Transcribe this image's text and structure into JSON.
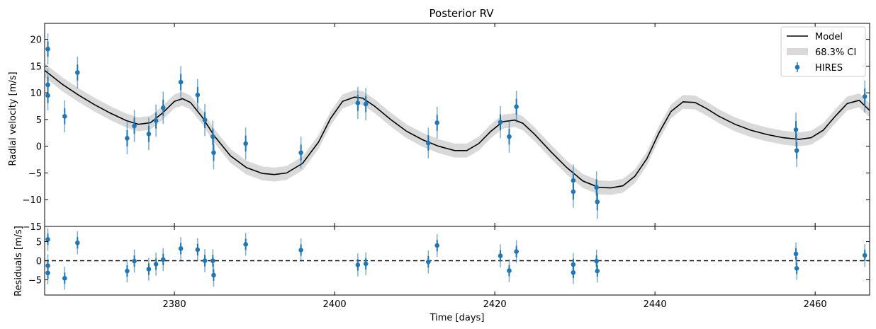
{
  "chart_data": [
    {
      "type": "line",
      "panel": "top",
      "title": "Posterior RV",
      "ylabel": "Radial velocity [m/s]",
      "xlim": [
        2363.8,
        2466.8
      ],
      "ylim": [
        -15,
        23
      ],
      "yticks": [
        -15,
        -10,
        -5,
        0,
        5,
        10,
        15,
        20
      ],
      "ytick_labels": [
        "−15",
        "−10",
        "−5",
        "0",
        "5",
        "10",
        "15",
        "20"
      ],
      "legend": {
        "placement": "top-right",
        "entries": [
          {
            "label": "Model",
            "kind": "line",
            "color": "#000000"
          },
          {
            "label": "68.3% CI",
            "kind": "band",
            "color": "#d9d9d9"
          },
          {
            "label": "HIRES",
            "kind": "errorbar",
            "color": "#1f77b4"
          }
        ]
      },
      "model": {
        "name": "Model",
        "color": "#000000",
        "band_color": "#d9d9d9",
        "band_halfwidth": 1.3,
        "x": [
          2363.8,
          2366,
          2368,
          2370,
          2372,
          2374,
          2375.5,
          2377,
          2378.5,
          2380,
          2381,
          2382,
          2383.5,
          2385,
          2387,
          2389,
          2391,
          2392.5,
          2394,
          2396,
          2398,
          2399.5,
          2401,
          2402.5,
          2403.5,
          2405,
          2407,
          2409,
          2411,
          2413,
          2415,
          2416.5,
          2418,
          2419.5,
          2421,
          2422.5,
          2423.5,
          2425,
          2427,
          2429,
          2431,
          2433,
          2434.5,
          2436,
          2437.5,
          2439,
          2440.5,
          2442,
          2443.5,
          2445,
          2446.5,
          2448,
          2450,
          2452,
          2454,
          2456,
          2458,
          2459.5,
          2461,
          2462.5,
          2464,
          2465.5,
          2466.8
        ],
        "y": [
          14.2,
          11.6,
          9.6,
          7.8,
          6.2,
          4.8,
          4.1,
          4.4,
          6.2,
          8.4,
          8.9,
          8.2,
          5.4,
          1.9,
          -1.8,
          -4.0,
          -5.1,
          -5.3,
          -5.0,
          -3.2,
          0.8,
          5.2,
          8.4,
          9.2,
          9.0,
          7.5,
          5.0,
          2.8,
          1.2,
          0.0,
          -0.8,
          -0.8,
          0.5,
          2.8,
          4.6,
          4.9,
          4.3,
          2.2,
          -1.0,
          -4.0,
          -6.5,
          -7.7,
          -7.8,
          -7.4,
          -5.6,
          -2.3,
          2.5,
          6.5,
          8.3,
          8.2,
          7.0,
          5.6,
          4.1,
          3.0,
          2.2,
          1.6,
          1.3,
          1.6,
          3.0,
          5.6,
          8.0,
          8.6,
          6.7
        ]
      },
      "series": [
        {
          "name": "HIRES",
          "color": "#1f77b4",
          "x": [
            2364.2,
            2364.2,
            2364.2,
            2366.3,
            2367.9,
            2374.1,
            2375.0,
            2376.8,
            2377.7,
            2378.6,
            2380.8,
            2382.9,
            2383.8,
            2384.8,
            2384.9,
            2388.9,
            2395.8,
            2402.9,
            2403.9,
            2411.7,
            2412.8,
            2420.7,
            2421.8,
            2422.7,
            2429.8,
            2429.8,
            2432.7,
            2432.8,
            2457.6,
            2457.7,
            2466.2
          ],
          "y": [
            18.2,
            11.5,
            9.5,
            5.6,
            13.8,
            1.5,
            3.8,
            2.3,
            4.8,
            7.2,
            12.0,
            9.6,
            4.9,
            1.8,
            -1.2,
            0.5,
            -1.2,
            8.1,
            7.9,
            0.6,
            4.4,
            4.5,
            1.8,
            7.4,
            -6.4,
            -8.5,
            -7.7,
            -10.4,
            3.1,
            -0.8,
            9.3
          ],
          "yerr": [
            2.9,
            3.0,
            2.8,
            3.0,
            3.0,
            3.0,
            3.0,
            3.0,
            3.0,
            3.0,
            3.0,
            3.0,
            3.0,
            3.0,
            3.1,
            3.0,
            3.0,
            3.0,
            3.0,
            2.9,
            3.0,
            3.0,
            3.0,
            3.0,
            3.0,
            3.0,
            3.0,
            3.2,
            3.2,
            3.1,
            3.0
          ]
        }
      ]
    },
    {
      "type": "scatter",
      "panel": "bottom",
      "xlabel": "Time [days]",
      "ylabel": "Residuals [m/s]",
      "xlim": [
        2363.8,
        2466.8
      ],
      "ylim": [
        -9,
        9
      ],
      "yticks": [
        -5,
        0,
        5
      ],
      "ytick_labels": [
        "−5",
        "0",
        "5"
      ],
      "xticks": [
        2380,
        2400,
        2420,
        2440,
        2460
      ],
      "xtick_labels": [
        "2380",
        "2400",
        "2420",
        "2440",
        "2460"
      ],
      "zero_line": {
        "y": 0,
        "style": "dashed",
        "color": "#000000"
      },
      "series": [
        {
          "name": "HIRES",
          "color": "#1f77b4",
          "x": [
            2364.2,
            2364.2,
            2364.2,
            2366.3,
            2367.9,
            2374.1,
            2375.0,
            2376.8,
            2377.7,
            2378.6,
            2380.8,
            2382.9,
            2383.8,
            2384.8,
            2384.9,
            2388.9,
            2395.8,
            2402.9,
            2403.9,
            2411.7,
            2412.8,
            2420.7,
            2421.8,
            2422.7,
            2429.8,
            2429.8,
            2432.7,
            2432.8,
            2457.6,
            2457.7,
            2466.2
          ],
          "y": [
            5.6,
            -1.3,
            -3.2,
            -4.6,
            4.7,
            -2.7,
            -0.1,
            -2.2,
            -0.9,
            0.3,
            3.2,
            2.9,
            0.0,
            0.0,
            -3.8,
            4.3,
            2.8,
            -1.1,
            -0.8,
            -0.3,
            4.0,
            1.3,
            -2.6,
            2.4,
            -1.0,
            -3.1,
            -0.1,
            -2.7,
            1.8,
            -2.0,
            1.4
          ],
          "yerr": [
            3.0,
            3.0,
            3.0,
            3.0,
            3.0,
            3.0,
            3.0,
            3.0,
            3.0,
            3.0,
            3.0,
            3.0,
            3.0,
            3.0,
            3.0,
            3.0,
            3.0,
            3.0,
            3.0,
            3.0,
            3.0,
            3.0,
            3.0,
            3.0,
            3.0,
            3.0,
            3.0,
            3.0,
            3.0,
            3.0,
            3.0
          ]
        }
      ]
    }
  ]
}
